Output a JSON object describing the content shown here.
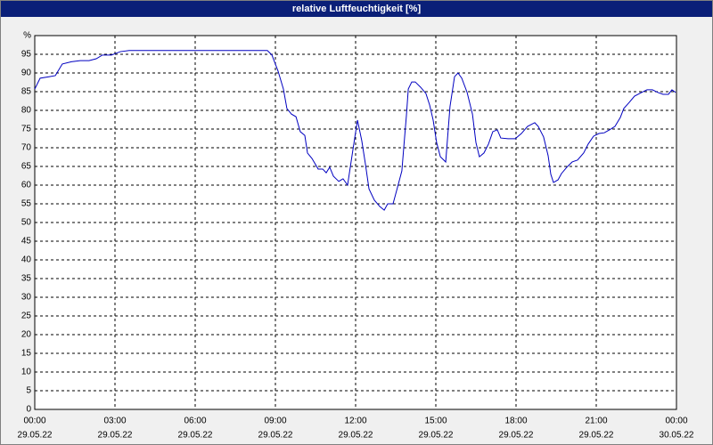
{
  "chart_data": {
    "type": "line",
    "title": "relative Luftfeuchtigkeit [%]",
    "xlim": [
      0,
      24
    ],
    "ylim": [
      0,
      100
    ],
    "xticks": [
      {
        "value": 0,
        "label": [
          "00:00",
          "29.05.22"
        ]
      },
      {
        "value": 3,
        "label": [
          "03:00",
          "29.05.22"
        ]
      },
      {
        "value": 6,
        "label": [
          "06:00",
          "29.05.22"
        ]
      },
      {
        "value": 9,
        "label": [
          "09:00",
          "29.05.22"
        ]
      },
      {
        "value": 12,
        "label": [
          "12:00",
          "29.05.22"
        ]
      },
      {
        "value": 15,
        "label": [
          "15:00",
          "29.05.22"
        ]
      },
      {
        "value": 18,
        "label": [
          "18:00",
          "29.05.22"
        ]
      },
      {
        "value": 21,
        "label": [
          "21:00",
          "29.05.22"
        ]
      },
      {
        "value": 24,
        "label": [
          "00:00",
          "30.05.22"
        ]
      }
    ],
    "yticks": [
      0,
      5,
      10,
      15,
      20,
      25,
      30,
      35,
      40,
      45,
      50,
      55,
      60,
      65,
      70,
      75,
      80,
      85,
      90,
      95,
      {
        "value": 100,
        "label": "%"
      }
    ],
    "grid": true,
    "series": [
      {
        "color": "#0000c0",
        "x": [
          0,
          0.2,
          0.53,
          0.77,
          1.03,
          1.37,
          1.7,
          2.03,
          2.3,
          2.53,
          2.87,
          3.2,
          3.53,
          8.7,
          8.87,
          9.1,
          9.3,
          9.43,
          9.6,
          9.77,
          9.93,
          10.1,
          10.2,
          10.37,
          10.6,
          10.77,
          10.9,
          11.03,
          11.17,
          11.37,
          11.53,
          11.7,
          11.9,
          12.07,
          12.23,
          12.37,
          12.5,
          12.7,
          12.9,
          13.07,
          13.2,
          13.4,
          13.57,
          13.73,
          13.83,
          13.9,
          13.97,
          14.1,
          14.23,
          14.43,
          14.63,
          14.77,
          14.9,
          15.03,
          15.17,
          15.37,
          15.53,
          15.7,
          15.83,
          15.97,
          16.17,
          16.37,
          16.5,
          16.63,
          16.8,
          16.97,
          17.13,
          17.3,
          17.43,
          17.7,
          17.97,
          18.2,
          18.43,
          18.7,
          18.83,
          19.03,
          19.2,
          19.3,
          19.4,
          19.57,
          19.7,
          19.9,
          20.1,
          20.3,
          20.53,
          20.7,
          20.9,
          21.1,
          21.3,
          21.5,
          21.7,
          21.9,
          22.03,
          22.23,
          22.43,
          22.7,
          22.9,
          23.1,
          23.3,
          23.5,
          23.7,
          23.83,
          23.97
        ],
        "values": [
          85.7,
          88.6,
          89,
          89.3,
          92.4,
          93,
          93.3,
          93.3,
          93.8,
          94.8,
          94.8,
          95.7,
          96,
          96,
          94.8,
          90.5,
          85.7,
          80.5,
          79,
          78.3,
          74.3,
          73.3,
          68.6,
          67.1,
          64.3,
          64.3,
          63.3,
          64.8,
          62.4,
          61,
          61.7,
          60,
          69.5,
          77.4,
          71.9,
          65.5,
          59,
          56,
          54.3,
          53.3,
          55,
          55,
          59.5,
          63.8,
          72.6,
          78.6,
          85.7,
          87.6,
          87.6,
          86.2,
          84.5,
          81.4,
          77.4,
          71.4,
          67.6,
          66.2,
          81,
          89,
          90,
          88.6,
          84.8,
          79,
          71.4,
          67.6,
          68.6,
          71,
          74.3,
          74.8,
          72.6,
          72.4,
          72.4,
          73.8,
          75.7,
          76.7,
          75.7,
          72.9,
          67.9,
          62.9,
          60.7,
          61.4,
          63.1,
          64.8,
          66.2,
          66.7,
          68.6,
          71,
          73.1,
          73.8,
          74,
          74.8,
          75.7,
          78.1,
          80.5,
          82.1,
          83.8,
          84.8,
          85.5,
          85.5,
          84.8,
          84.3,
          84.3,
          85.5,
          84.8
        ]
      }
    ]
  }
}
